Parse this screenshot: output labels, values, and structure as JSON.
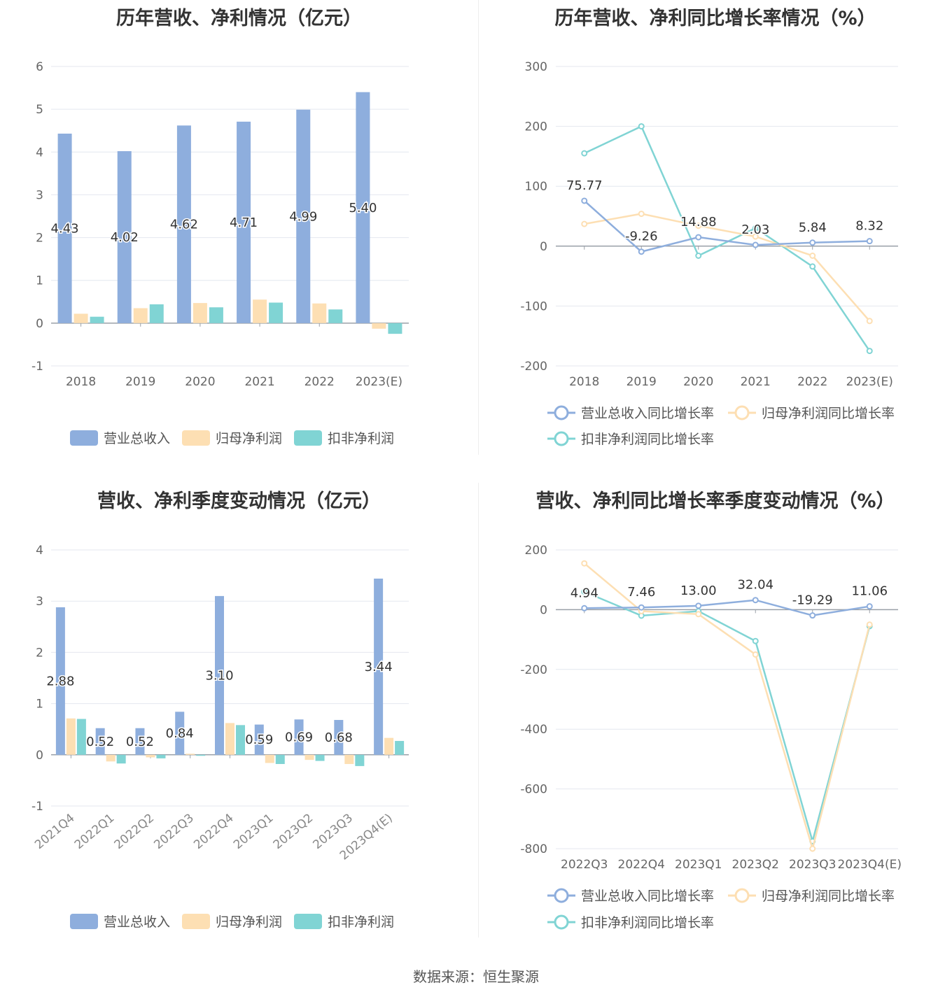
{
  "source": "数据来源：恒生聚源",
  "colors": {
    "revenue": "#8eaedd",
    "net": "#fddfb3",
    "deducted": "#80d4d4"
  },
  "chart_data": [
    {
      "type": "bar",
      "title": "历年营收、净利情况（亿元）",
      "categories": [
        "2018",
        "2019",
        "2020",
        "2021",
        "2022",
        "2023(E)"
      ],
      "ylim": [
        -1,
        6
      ],
      "yticks": [
        -1,
        0,
        1,
        2,
        3,
        4,
        5,
        6
      ],
      "series": [
        {
          "name": "营业总收入",
          "values": [
            4.43,
            4.02,
            4.62,
            4.71,
            4.99,
            5.4
          ],
          "labels": [
            "4.43",
            "4.02",
            "4.62",
            "4.71",
            "4.99",
            "5.40"
          ]
        },
        {
          "name": "归母净利润",
          "values": [
            0.22,
            0.35,
            0.47,
            0.55,
            0.46,
            -0.13
          ]
        },
        {
          "name": "扣非净利润",
          "values": [
            0.15,
            0.44,
            0.37,
            0.48,
            0.32,
            -0.25
          ]
        }
      ],
      "legend": "bottom"
    },
    {
      "type": "line",
      "title": "历年营收、净利同比增长率情况（%）",
      "categories": [
        "2018",
        "2019",
        "2020",
        "2021",
        "2022",
        "2023(E)"
      ],
      "ylim": [
        -200,
        300
      ],
      "yticks": [
        -200,
        -100,
        0,
        100,
        200,
        300
      ],
      "series": [
        {
          "name": "营业总收入同比增长率",
          "values": [
            75.77,
            -9.26,
            14.88,
            2.03,
            5.84,
            8.32
          ],
          "labels": [
            "75.77",
            "-9.26",
            "14.88",
            "2.03",
            "5.84",
            "8.32"
          ]
        },
        {
          "name": "归母净利润同比增长率",
          "values": [
            37,
            54,
            34,
            16,
            -16,
            -125
          ]
        },
        {
          "name": "扣非净利润同比增长率",
          "values": [
            155,
            200,
            -16,
            30,
            -34,
            -175
          ]
        }
      ],
      "legend": "bottom"
    },
    {
      "type": "bar",
      "title": "营收、净利季度变动情况（亿元）",
      "categories": [
        "2021Q4",
        "2022Q1",
        "2022Q2",
        "2022Q3",
        "2022Q4",
        "2023Q1",
        "2023Q2",
        "2023Q3",
        "2023Q4(E)"
      ],
      "ylim": [
        -1,
        4
      ],
      "yticks": [
        -1,
        0,
        1,
        2,
        3,
        4
      ],
      "series": [
        {
          "name": "营业总收入",
          "values": [
            2.88,
            0.52,
            0.52,
            0.84,
            3.1,
            0.59,
            0.69,
            0.68,
            3.44
          ],
          "labels": [
            "2.88",
            "0.52",
            "0.52",
            "0.84",
            "3.10",
            "0.59",
            "0.69",
            "0.68",
            "3.44"
          ]
        },
        {
          "name": "归母净利润",
          "values": [
            0.71,
            -0.13,
            -0.05,
            0.02,
            0.62,
            -0.16,
            -0.1,
            -0.18,
            0.33
          ]
        },
        {
          "name": "扣非净利润",
          "values": [
            0.7,
            -0.17,
            -0.07,
            -0.02,
            0.58,
            -0.18,
            -0.12,
            -0.22,
            0.27
          ]
        }
      ],
      "legend": "bottom"
    },
    {
      "type": "line",
      "title": "营收、净利同比增长率季度变动情况（%）",
      "categories": [
        "2022Q3",
        "2022Q4",
        "2023Q1",
        "2023Q2",
        "2023Q3",
        "2023Q4(E)"
      ],
      "ylim": [
        -800,
        200
      ],
      "yticks": [
        -800,
        -600,
        -400,
        -200,
        0,
        200
      ],
      "series": [
        {
          "name": "营业总收入同比增长率",
          "values": [
            4.94,
            7.46,
            13.0,
            32.04,
            -19.29,
            11.06
          ],
          "labels": [
            "4.94",
            "7.46",
            "13.00",
            "32.04",
            "-19.29",
            "11.06"
          ]
        },
        {
          "name": "归母净利润同比增长率",
          "values": [
            155,
            -5,
            -15,
            -150,
            -800,
            -50
          ]
        },
        {
          "name": "扣非净利润同比增长率",
          "values": [
            60,
            -20,
            -5,
            -105,
            -775,
            -55
          ]
        }
      ],
      "legend": "bottom"
    }
  ]
}
